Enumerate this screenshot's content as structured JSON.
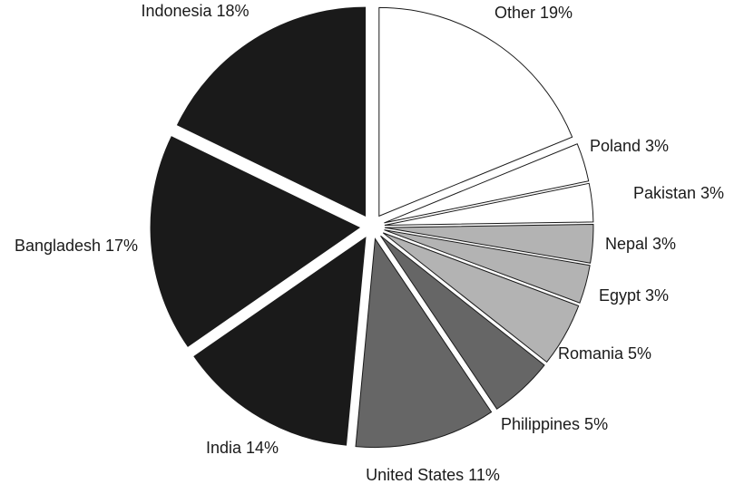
{
  "chart_data": {
    "type": "pie",
    "title": "",
    "slices": [
      {
        "label": "Other 19%",
        "value": 19,
        "color": "#ffffff"
      },
      {
        "label": "Poland 3%",
        "value": 3,
        "color": "#ffffff"
      },
      {
        "label": "Pakistan 3%",
        "value": 3,
        "color": "#ffffff"
      },
      {
        "label": "Nepal 3%",
        "value": 3,
        "color": "#b3b3b3"
      },
      {
        "label": "Egypt 3%",
        "value": 3,
        "color": "#b3b3b3"
      },
      {
        "label": "Romania 5%",
        "value": 5,
        "color": "#b3b3b3"
      },
      {
        "label": "Philippines 5%",
        "value": 5,
        "color": "#666666"
      },
      {
        "label": "United States 11%",
        "value": 11,
        "color": "#666666"
      },
      {
        "label": "India 14%",
        "value": 14,
        "color": "#1a1a1a"
      },
      {
        "label": "Bangladesh 17%",
        "value": 17,
        "color": "#1a1a1a"
      },
      {
        "label": "Indonesia 18%",
        "value": 18,
        "color": "#1a1a1a"
      }
    ],
    "start": "12 o'clock",
    "direction": "clockwise",
    "slices_exploded": true,
    "legend": "none"
  }
}
